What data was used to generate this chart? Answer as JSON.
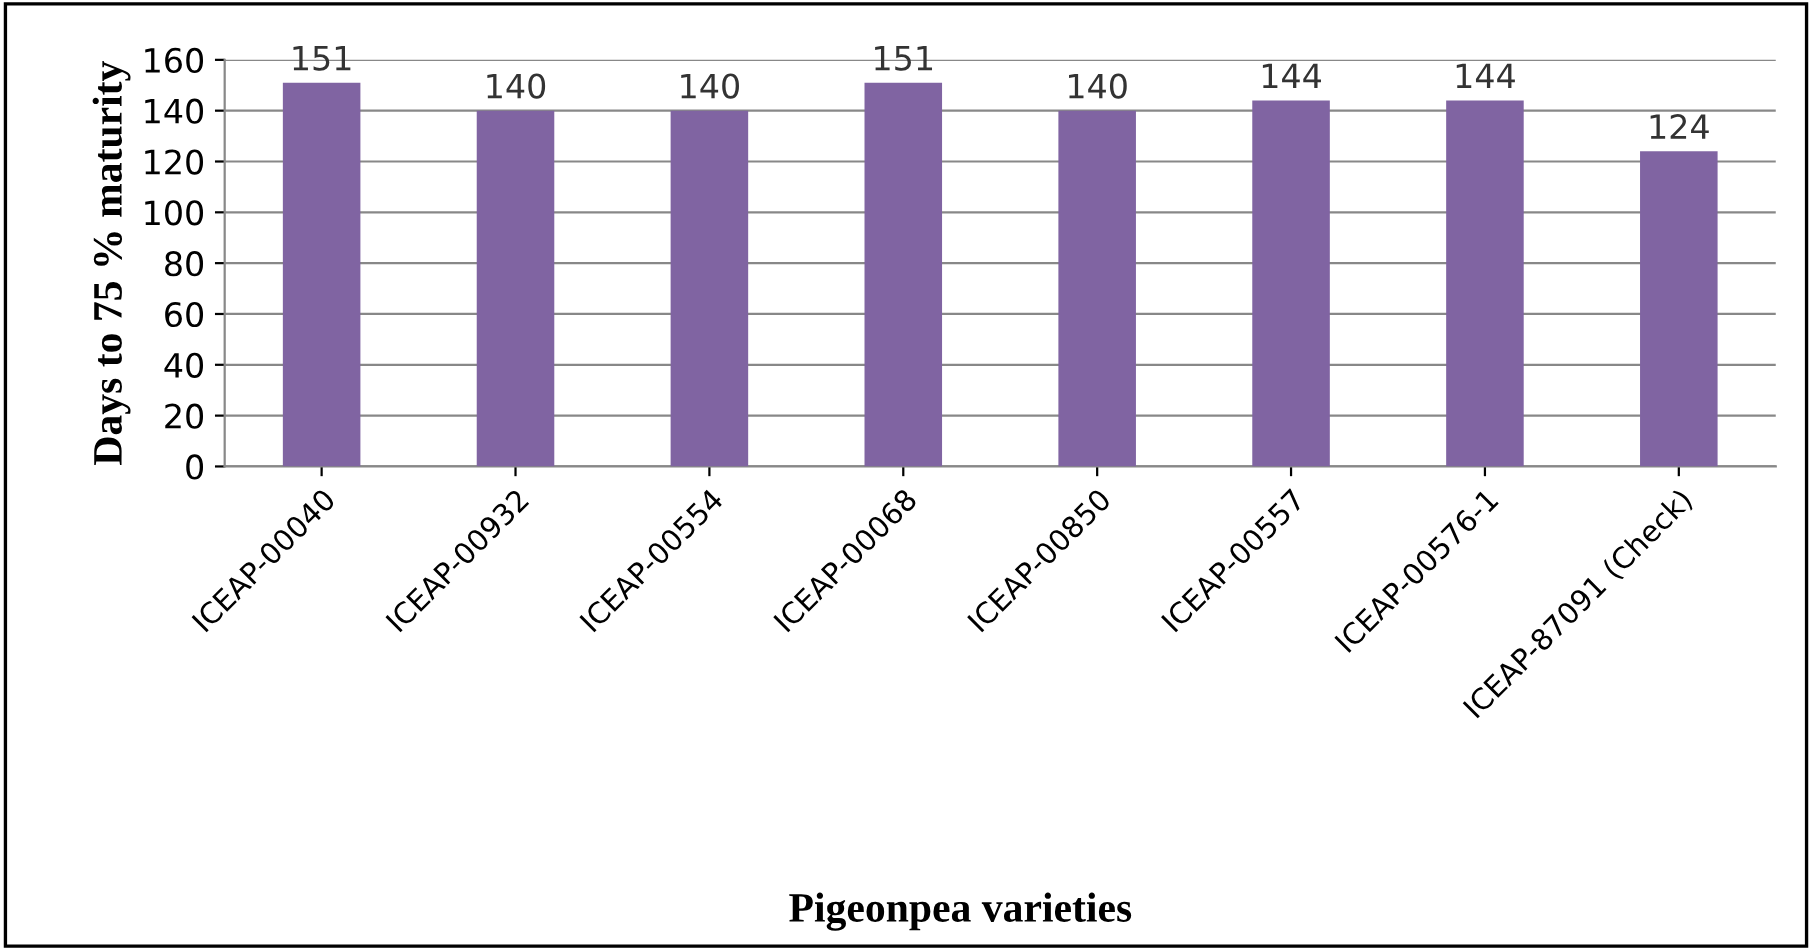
{
  "chart_data": {
    "type": "bar",
    "xlabel": "Pigeonpea varieties",
    "ylabel": "Days to 75 % maturity",
    "categories": [
      "ICEAP-00040",
      "ICEAP-00932",
      "ICEAP-00554",
      "ICEAP-00068",
      "ICEAP-00850",
      "ICEAP-00557",
      "ICEAP-00576-1",
      "ICEAP-87091 (Check)"
    ],
    "values": [
      151,
      140,
      140,
      151,
      140,
      144,
      144,
      124
    ],
    "color": "#8064a2",
    "ylim": [
      0,
      160
    ],
    "yticks": [
      0,
      20,
      40,
      60,
      80,
      100,
      120,
      140,
      160
    ],
    "grid": "y",
    "data_labels": true,
    "legend": false
  }
}
